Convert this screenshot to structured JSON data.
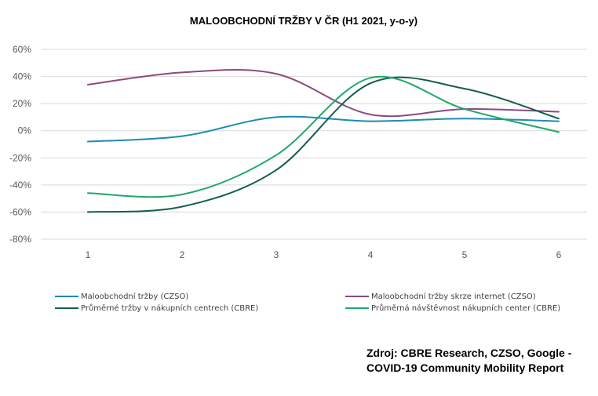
{
  "chart_data": {
    "type": "line",
    "title": "MALOOBCHODNÍ TRŽBY V ČR (H1 2021, y-o-y)",
    "x": [
      1,
      2,
      3,
      4,
      5,
      6
    ],
    "xlabels": [
      "1",
      "2",
      "3",
      "4",
      "5",
      "6"
    ],
    "ylim": [
      -80,
      60
    ],
    "yticks": [
      60,
      40,
      20,
      0,
      -20,
      -40,
      -60,
      -80
    ],
    "ytick_labels": [
      "60%",
      "40%",
      "20%",
      "0%",
      "-20%",
      "-40%",
      "-60%",
      "-80%"
    ],
    "grid": true,
    "legend_position": "bottom",
    "series": [
      {
        "name": "Maloobchodní tržby (CZSO)",
        "color": "#1f8bb0",
        "values": [
          -8,
          -4,
          10,
          7,
          9,
          7
        ]
      },
      {
        "name": "Maloobchodní tržby skrze internet (CZSO)",
        "color": "#8b4a7e",
        "values": [
          34,
          43,
          42,
          12,
          16,
          14
        ]
      },
      {
        "name": "Průměrné tržby v nákupních centrech (CBRE)",
        "color": "#135e4f",
        "values": [
          -60,
          -56,
          -29,
          35,
          31,
          9
        ]
      },
      {
        "name": "Průměrná návštěvnost nákupních center (CBRE)",
        "color": "#1ea86a",
        "values": [
          -46,
          -47,
          -18,
          39,
          16,
          -1
        ]
      }
    ]
  },
  "source": {
    "line1": "Zdroj: CBRE Research, CZSO, Google -",
    "line2": "COVID-19 Community Mobility Report"
  }
}
